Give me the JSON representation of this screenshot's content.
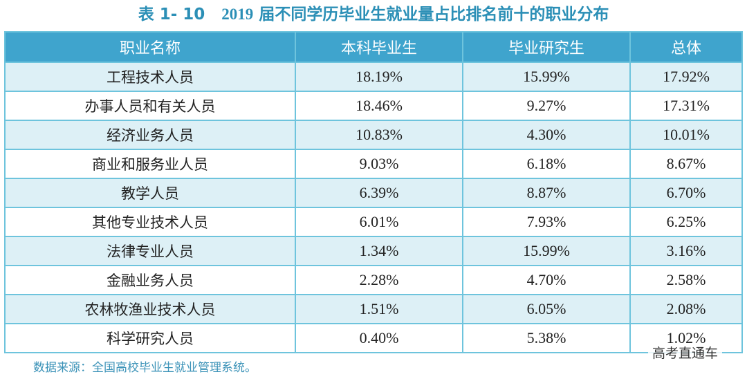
{
  "title": {
    "label": "表 1- 10",
    "year": "2019",
    "text": "届不同学历毕业生就业量占比排名前十的职业分布"
  },
  "table": {
    "headers": [
      "职业名称",
      "本科毕业生",
      "毕业研究生",
      "总体"
    ],
    "rows": [
      {
        "occupation": "工程技术人员",
        "undergrad": "18.19%",
        "graduate": "15.99%",
        "overall": "17.92%"
      },
      {
        "occupation": "办事人员和有关人员",
        "undergrad": "18.46%",
        "graduate": "9.27%",
        "overall": "17.31%"
      },
      {
        "occupation": "经济业务人员",
        "undergrad": "10.83%",
        "graduate": "4.30%",
        "overall": "10.01%"
      },
      {
        "occupation": "商业和服务业人员",
        "undergrad": "9.03%",
        "graduate": "6.18%",
        "overall": "8.67%"
      },
      {
        "occupation": "教学人员",
        "undergrad": "6.39%",
        "graduate": "8.87%",
        "overall": "6.70%"
      },
      {
        "occupation": "其他专业技术人员",
        "undergrad": "6.01%",
        "graduate": "7.93%",
        "overall": "6.25%"
      },
      {
        "occupation": "法律专业人员",
        "undergrad": "1.34%",
        "graduate": "15.99%",
        "overall": "3.16%"
      },
      {
        "occupation": "金融业务人员",
        "undergrad": "2.28%",
        "graduate": "4.70%",
        "overall": "2.58%"
      },
      {
        "occupation": "农林牧渔业技术人员",
        "undergrad": "1.51%",
        "graduate": "6.05%",
        "overall": "2.08%"
      },
      {
        "occupation": "科学研究人员",
        "undergrad": "0.40%",
        "graduate": "5.38%",
        "overall": "1.02%"
      }
    ]
  },
  "source": "数据来源：全国高校毕业生就业管理系统。",
  "watermark": "高考直通车",
  "colors": {
    "title": "#2b8fb6",
    "header_bg": "#3fa4cd",
    "border": "#6ec4dd",
    "row_band": "#ddf0f6",
    "source": "#3c93b8"
  }
}
